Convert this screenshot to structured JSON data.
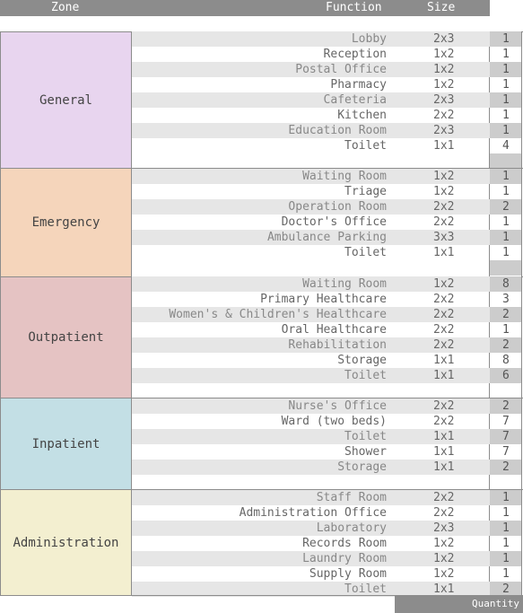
{
  "header": {
    "zone": "Zone",
    "function": "Function",
    "size": "Size"
  },
  "footer": {
    "quantity": "Quantity"
  },
  "zones": [
    {
      "name": "General",
      "color": "#e8d5ef",
      "rows": [
        {
          "function": "Lobby",
          "size": "2x3",
          "qty": "1"
        },
        {
          "function": "Reception",
          "size": "1x2",
          "qty": "1"
        },
        {
          "function": "Postal Office",
          "size": "1x2",
          "qty": "1"
        },
        {
          "function": "Pharmacy",
          "size": "1x2",
          "qty": "1"
        },
        {
          "function": "Cafeteria",
          "size": "2x3",
          "qty": "1"
        },
        {
          "function": "Kitchen",
          "size": "2x2",
          "qty": "1"
        },
        {
          "function": "Education Room",
          "size": "2x3",
          "qty": "1"
        },
        {
          "function": "Toilet",
          "size": "1x1",
          "qty": "4"
        }
      ]
    },
    {
      "name": "Emergency",
      "color": "#f5d5bb",
      "rows": [
        {
          "function": "Waiting Room",
          "size": "1x2",
          "qty": "1"
        },
        {
          "function": "Triage",
          "size": "1x2",
          "qty": "1"
        },
        {
          "function": "Operation Room",
          "size": "2x2",
          "qty": "2"
        },
        {
          "function": "Doctor's Office",
          "size": "2x2",
          "qty": "1"
        },
        {
          "function": "Ambulance Parking",
          "size": "3x3",
          "qty": "1"
        },
        {
          "function": "Toilet",
          "size": "1x1",
          "qty": "1"
        }
      ]
    },
    {
      "name": "Outpatient",
      "color": "#e5c3c3",
      "rows": [
        {
          "function": "Waiting Room",
          "size": "1x2",
          "qty": "8"
        },
        {
          "function": "Primary Healthcare",
          "size": "2x2",
          "qty": "3"
        },
        {
          "function": "Women's & Children's Healthcare",
          "size": "2x2",
          "qty": "2"
        },
        {
          "function": "Oral Healthcare",
          "size": "2x2",
          "qty": "1"
        },
        {
          "function": "Rehabilitation",
          "size": "2x2",
          "qty": "2"
        },
        {
          "function": "Storage",
          "size": "1x1",
          "qty": "8"
        },
        {
          "function": "Toilet",
          "size": "1x1",
          "qty": "6"
        }
      ]
    },
    {
      "name": "Inpatient",
      "color": "#c3dfe5",
      "rows": [
        {
          "function": "Nurse's Office",
          "size": "2x2",
          "qty": "2"
        },
        {
          "function": "Ward (two beds)",
          "size": "2x2",
          "qty": "7"
        },
        {
          "function": "Toilet",
          "size": "1x1",
          "qty": "7"
        },
        {
          "function": "Shower",
          "size": "1x1",
          "qty": "7"
        },
        {
          "function": "Storage",
          "size": "1x1",
          "qty": "2"
        }
      ]
    },
    {
      "name": "Administration",
      "color": "#f3efd0",
      "rows": [
        {
          "function": "Staff Room",
          "size": "2x2",
          "qty": "1"
        },
        {
          "function": "Administration Office",
          "size": "2x2",
          "qty": "1"
        },
        {
          "function": "Laboratory",
          "size": "2x3",
          "qty": "1"
        },
        {
          "function": "Records Room",
          "size": "1x2",
          "qty": "1"
        },
        {
          "function": "Laundry Room",
          "size": "1x2",
          "qty": "1"
        },
        {
          "function": "Supply Room",
          "size": "1x2",
          "qty": "1"
        },
        {
          "function": "Toilet",
          "size": "1x1",
          "qty": "2"
        }
      ]
    }
  ]
}
